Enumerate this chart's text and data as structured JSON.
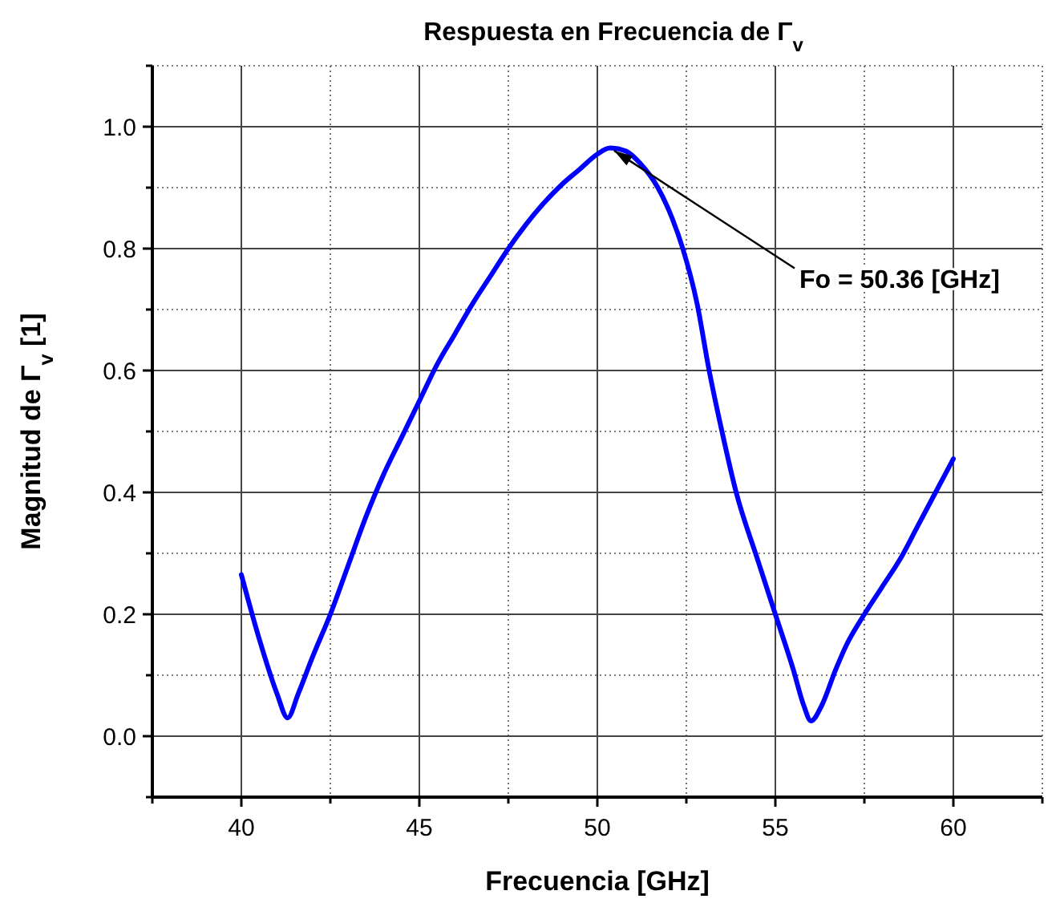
{
  "chart_data": {
    "type": "line",
    "title": "Respuesta en Frecuencia de Γ$_{v}$",
    "xlabel": "Frecuencia [GHz]",
    "ylabel": "Magnitud de Γ$_{v}$ [1]",
    "x": [
      40,
      40.5,
      41,
      41.3,
      41.6,
      42,
      42.5,
      43,
      43.5,
      44,
      44.5,
      45,
      45.5,
      46,
      46.5,
      47,
      47.5,
      48,
      48.5,
      49,
      49.5,
      50,
      50.36,
      50.8,
      51.2,
      51.7,
      52.1,
      52.4,
      52.8,
      53.14,
      53.5,
      53.9,
      54.5,
      55,
      55.5,
      55.8,
      56,
      56.3,
      56.7,
      57,
      57.5,
      58,
      58.5,
      59,
      59.5,
      60
    ],
    "series": [
      {
        "color": "#0000ff",
        "values": [
          0.265,
          0.16,
          0.07,
          0.03,
          0.07,
          0.13,
          0.2,
          0.28,
          0.36,
          0.43,
          0.49,
          0.55,
          0.61,
          0.66,
          0.71,
          0.755,
          0.8,
          0.84,
          0.875,
          0.905,
          0.93,
          0.955,
          0.965,
          0.96,
          0.94,
          0.9,
          0.85,
          0.8,
          0.71,
          0.6,
          0.5,
          0.4,
          0.29,
          0.2,
          0.11,
          0.05,
          0.025,
          0.05,
          0.11,
          0.15,
          0.2,
          0.245,
          0.29,
          0.345,
          0.4,
          0.455
        ]
      }
    ],
    "xlim": [
      37.5,
      62.5
    ],
    "xticks": [
      {
        "value": 37.5,
        "label": null
      },
      40,
      {
        "value": 42.5,
        "label": null
      },
      45,
      {
        "value": 47.5,
        "label": null
      },
      50,
      {
        "value": 52.5,
        "label": null
      },
      55,
      {
        "value": 57.5,
        "label": null
      },
      60,
      {
        "value": 62.5,
        "label": null
      }
    ],
    "ylim": [
      -0.1,
      1.1
    ],
    "yticks": [
      {
        "value": -0.1,
        "label": null
      },
      {
        "value": 0,
        "label": "0.0"
      },
      {
        "value": 0.1,
        "label": null
      },
      0.2,
      {
        "value": 0.3,
        "label": null
      },
      0.4,
      {
        "value": 0.5,
        "label": null
      },
      0.6,
      {
        "value": 0.7,
        "label": null
      },
      0.8,
      {
        "value": 0.9,
        "label": null
      },
      {
        "value": 1,
        "label": "1.0"
      },
      {
        "value": 1.1,
        "label": null
      }
    ],
    "grid": true,
    "marker": "none",
    "line_style": "solid",
    "annotations": [
      {
        "text": "Fo = 50.36 [GHz]",
        "x": 50.36,
        "y": 0.965
      }
    ]
  }
}
